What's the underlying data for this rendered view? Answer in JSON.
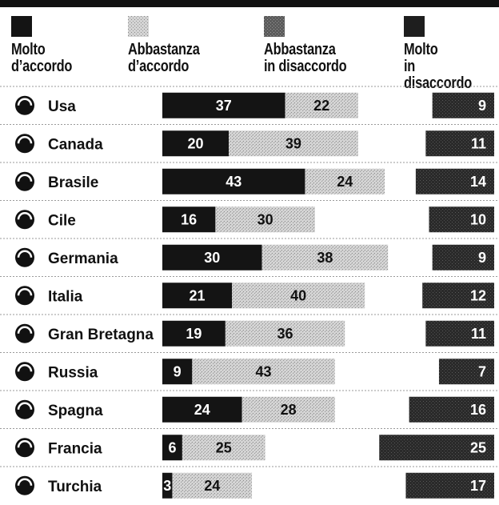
{
  "chart_data": {
    "type": "bar",
    "stacked": true,
    "legend_placement": "top",
    "legend": [
      {
        "label": "Molto\nd’accordo",
        "color": "#141414"
      },
      {
        "label": "Abbastanza\nd’accordo",
        "color": "#c6c6c6"
      },
      {
        "label": "Abbastanza\nin disaccordo",
        "color": "#6e6e6e"
      },
      {
        "label": "Molto\nin disaccordo",
        "color": "#1e1e1e"
      }
    ],
    "categories": [
      "Usa",
      "Canada",
      "Brasile",
      "Cile",
      "Germania",
      "Italia",
      "Gran Bretagna",
      "Russia",
      "Spagna",
      "Francia",
      "Turchia"
    ],
    "series": [
      {
        "name": "Molto d’accordo",
        "values": [
          37,
          20,
          43,
          16,
          30,
          21,
          19,
          9,
          24,
          6,
          3
        ]
      },
      {
        "name": "Abbastanza d’accordo",
        "values": [
          22,
          39,
          24,
          30,
          38,
          40,
          36,
          43,
          28,
          25,
          24
        ]
      },
      {
        "name": "Abbastanza in disaccordo",
        "values": [
          null,
          null,
          null,
          null,
          null,
          null,
          null,
          null,
          null,
          null,
          null
        ]
      },
      {
        "name": "Molto in disaccordo",
        "values": [
          9,
          11,
          14,
          10,
          9,
          12,
          11,
          7,
          16,
          25,
          17
        ]
      }
    ]
  }
}
